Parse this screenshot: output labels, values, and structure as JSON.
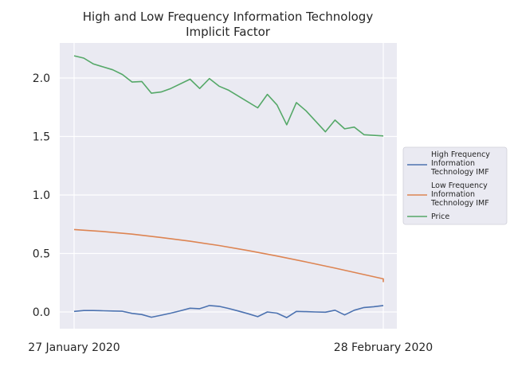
{
  "chart_data": {
    "type": "line",
    "title_lines": [
      "High and Low Frequency Information Technology",
      "Implicit Factor"
    ],
    "xlabel": "",
    "ylabel": "",
    "x_range": [
      "2020-01-27",
      "2020-02-28"
    ],
    "x_ticks": [
      {
        "date": "2020-01-27",
        "label": "27 January 2020"
      },
      {
        "date": "2020-02-28",
        "label": "28 February 2020"
      }
    ],
    "ylim": [
      -0.15,
      2.3
    ],
    "y_ticks": [
      0.0,
      0.5,
      1.0,
      1.5,
      2.0
    ],
    "y_tick_labels": [
      "0.0",
      "0.5",
      "1.0",
      "1.5",
      "2.0"
    ],
    "grid": true,
    "background": "#eaeaf2",
    "legend_position": "right",
    "series": [
      {
        "name": "High Frequency Information Technology IMF",
        "legend_lines": [
          "High Frequency",
          "Information",
          "Technology IMF"
        ],
        "color": "#4c72b0",
        "points": [
          [
            "2020-01-27",
            0.005
          ],
          [
            "2020-01-28",
            0.012
          ],
          [
            "2020-01-29",
            0.012
          ],
          [
            "2020-01-30",
            0.01
          ],
          [
            "2020-01-31",
            0.008
          ],
          [
            "2020-02-01",
            0.006
          ],
          [
            "2020-02-02",
            -0.012
          ],
          [
            "2020-02-03",
            -0.022
          ],
          [
            "2020-02-04",
            -0.045
          ],
          [
            "2020-02-05",
            -0.028
          ],
          [
            "2020-02-06",
            -0.01
          ],
          [
            "2020-02-07",
            0.01
          ],
          [
            "2020-02-08",
            0.032
          ],
          [
            "2020-02-09",
            0.028
          ],
          [
            "2020-02-10",
            0.055
          ],
          [
            "2020-02-11",
            0.048
          ],
          [
            "2020-02-12",
            0.03
          ],
          [
            "2020-02-13",
            0.008
          ],
          [
            "2020-02-14",
            -0.015
          ],
          [
            "2020-02-15",
            -0.04
          ],
          [
            "2020-02-16",
            0.0
          ],
          [
            "2020-02-17",
            -0.01
          ],
          [
            "2020-02-18",
            -0.048
          ],
          [
            "2020-02-19",
            0.005
          ],
          [
            "2020-02-20",
            0.003
          ],
          [
            "2020-02-21",
            0.0
          ],
          [
            "2020-02-22",
            -0.002
          ],
          [
            "2020-02-23",
            0.015
          ],
          [
            "2020-02-24",
            -0.025
          ],
          [
            "2020-02-25",
            0.015
          ],
          [
            "2020-02-26",
            0.038
          ],
          [
            "2020-02-27",
            0.045
          ],
          [
            "2020-02-28",
            0.055
          ]
        ]
      },
      {
        "name": "Low Frequency Information Technology IMF",
        "legend_lines": [
          "Low Frequency",
          "Information",
          "Technology IMF"
        ],
        "color": "#dd8452",
        "points": [
          [
            "2020-01-27",
            0.705
          ],
          [
            "2020-01-30",
            0.688
          ],
          [
            "2020-02-02",
            0.665
          ],
          [
            "2020-02-05",
            0.637
          ],
          [
            "2020-02-08",
            0.605
          ],
          [
            "2020-02-11",
            0.568
          ],
          [
            "2020-02-14",
            0.525
          ],
          [
            "2020-02-17",
            0.478
          ],
          [
            "2020-02-20",
            0.428
          ],
          [
            "2020-02-23",
            0.375
          ],
          [
            "2020-02-26",
            0.32
          ],
          [
            "2020-02-28",
            0.283
          ],
          [
            "2020-02-28",
            0.255
          ]
        ]
      },
      {
        "name": "Price",
        "legend_lines": [
          "Price"
        ],
        "color": "#55a868",
        "points": [
          [
            "2020-01-27",
            2.19
          ],
          [
            "2020-01-28",
            2.17
          ],
          [
            "2020-01-29",
            2.12
          ],
          [
            "2020-01-31",
            2.07
          ],
          [
            "2020-02-01",
            2.03
          ],
          [
            "2020-02-02",
            1.965
          ],
          [
            "2020-02-03",
            1.97
          ],
          [
            "2020-02-04",
            1.87
          ],
          [
            "2020-02-05",
            1.88
          ],
          [
            "2020-02-06",
            1.91
          ],
          [
            "2020-02-08",
            1.99
          ],
          [
            "2020-02-09",
            1.91
          ],
          [
            "2020-02-10",
            1.995
          ],
          [
            "2020-02-11",
            1.93
          ],
          [
            "2020-02-12",
            1.895
          ],
          [
            "2020-02-15",
            1.745
          ],
          [
            "2020-02-16",
            1.86
          ],
          [
            "2020-02-17",
            1.77
          ],
          [
            "2020-02-18",
            1.6
          ],
          [
            "2020-02-19",
            1.79
          ],
          [
            "2020-02-20",
            1.72
          ],
          [
            "2020-02-22",
            1.54
          ],
          [
            "2020-02-23",
            1.64
          ],
          [
            "2020-02-24",
            1.565
          ],
          [
            "2020-02-25",
            1.58
          ],
          [
            "2020-02-26",
            1.515
          ],
          [
            "2020-02-28",
            1.505
          ]
        ]
      }
    ]
  }
}
